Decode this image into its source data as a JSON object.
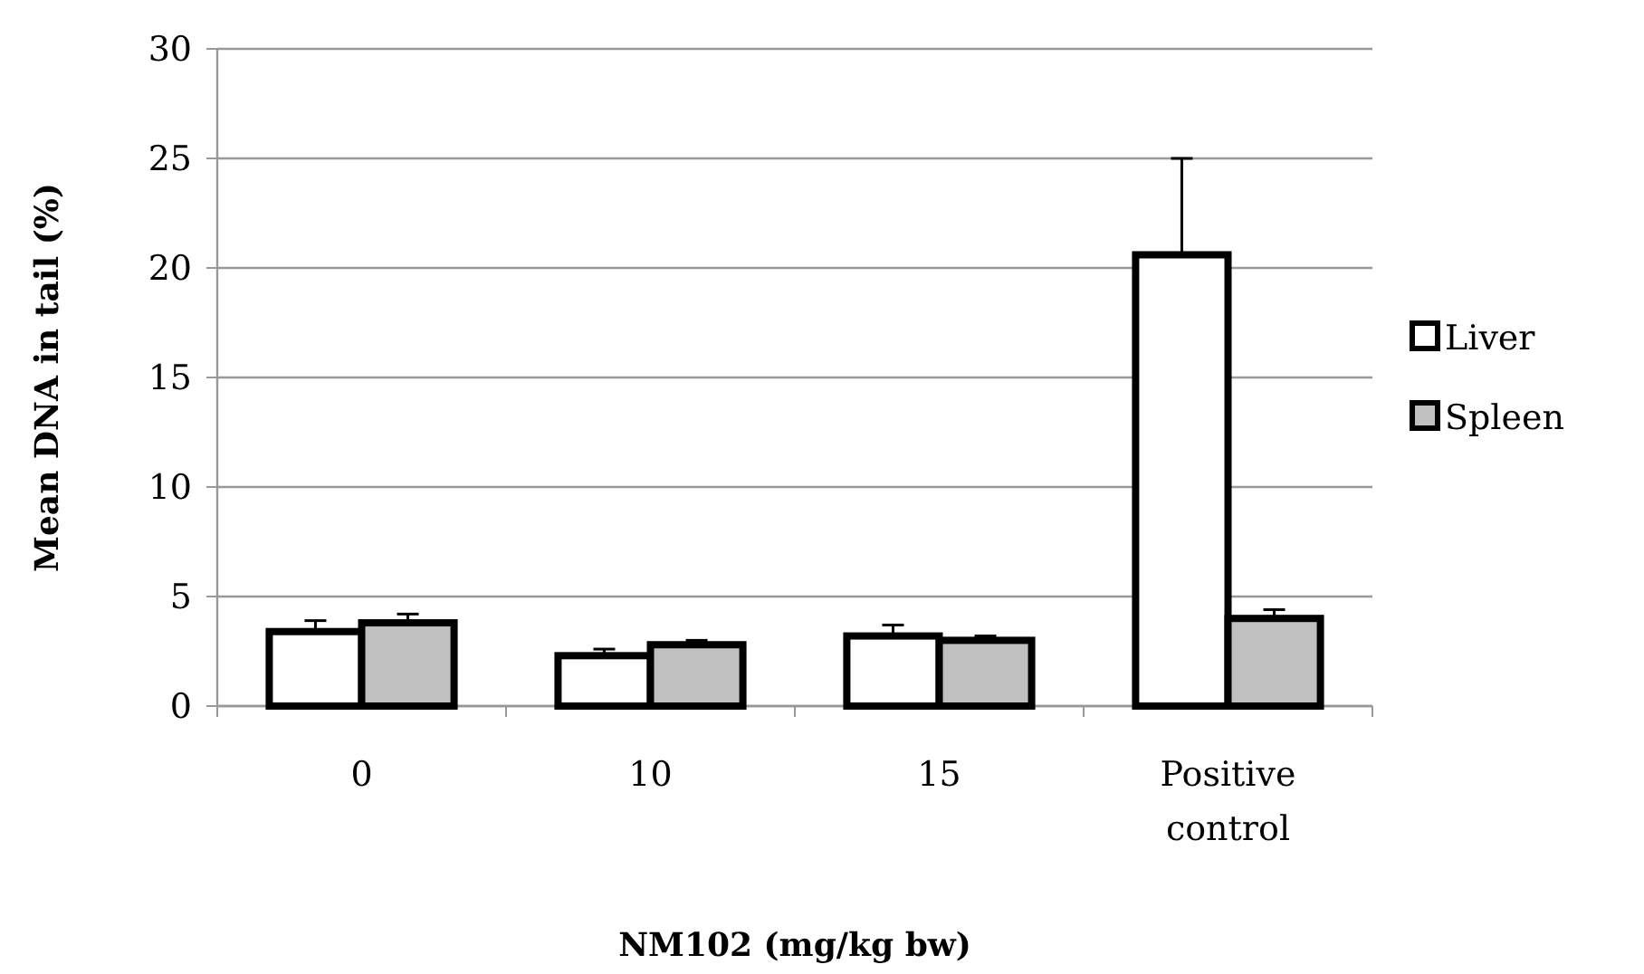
{
  "chart_data": {
    "type": "bar",
    "xlabel": "NM102 (mg/kg bw)",
    "ylabel": "Mean DNA in tail (%)",
    "categories": [
      "0",
      "10",
      "15",
      "Positive control"
    ],
    "series": [
      {
        "name": "Liver",
        "color": "#ffffff",
        "values": [
          3.4,
          2.3,
          3.2,
          20.6
        ],
        "errors": [
          0.5,
          0.3,
          0.5,
          4.4
        ]
      },
      {
        "name": "Spleen",
        "color": "#c0c0c0",
        "values": [
          3.8,
          2.8,
          3.0,
          4.0
        ],
        "errors": [
          0.4,
          0.2,
          0.2,
          0.4
        ]
      }
    ],
    "ylim": [
      0,
      30
    ],
    "yticks": [
      0,
      5,
      10,
      15,
      20,
      25,
      30
    ],
    "grid": "y",
    "legend": "right"
  }
}
